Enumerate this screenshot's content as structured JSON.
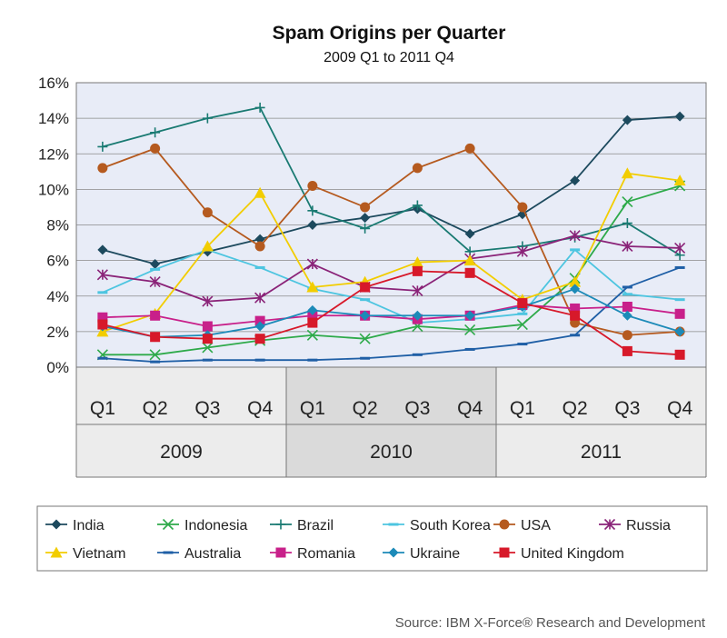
{
  "chart_data": {
    "type": "line",
    "title": "Spam Origins per Quarter",
    "subtitle": "2009 Q1 to 2011 Q4",
    "source": "Source: IBM X-Force® Research and Development",
    "quarters": [
      "Q1",
      "Q2",
      "Q3",
      "Q4",
      "Q1",
      "Q2",
      "Q3",
      "Q4",
      "Q1",
      "Q2",
      "Q3",
      "Q4"
    ],
    "years": [
      "2009",
      "2010",
      "2011"
    ],
    "y_ticks": [
      "0%",
      "2%",
      "4%",
      "6%",
      "8%",
      "10%",
      "12%",
      "14%",
      "16%"
    ],
    "ylim": [
      0,
      16
    ],
    "grid": true,
    "legend_position": "bottom",
    "series": [
      {
        "name": "India",
        "color": "#1d4a5e",
        "marker": "diamond",
        "values": [
          6.6,
          5.8,
          6.5,
          7.2,
          8.0,
          8.4,
          8.9,
          7.5,
          8.6,
          10.5,
          13.9,
          14.1
        ]
      },
      {
        "name": "Indonesia",
        "color": "#2eaa4a",
        "marker": "x",
        "values": [
          0.7,
          0.7,
          1.1,
          1.5,
          1.8,
          1.6,
          2.3,
          2.1,
          2.4,
          5.0,
          9.3,
          10.2
        ]
      },
      {
        "name": "Brazil",
        "color": "#197a72",
        "marker": "plus",
        "values": [
          12.4,
          13.2,
          14.0,
          14.6,
          8.8,
          7.8,
          9.1,
          6.5,
          6.8,
          7.3,
          8.1,
          6.3
        ]
      },
      {
        "name": "South Korea",
        "color": "#4dc5e0",
        "marker": "dash",
        "values": [
          4.2,
          5.5,
          6.6,
          5.6,
          4.4,
          3.8,
          2.5,
          2.7,
          3.0,
          6.6,
          4.1,
          3.8
        ]
      },
      {
        "name": "USA",
        "color": "#b55a1f",
        "marker": "circle",
        "values": [
          11.2,
          12.3,
          8.7,
          6.8,
          10.2,
          9.0,
          11.2,
          12.3,
          9.0,
          2.5,
          1.8,
          2.0
        ]
      },
      {
        "name": "Russia",
        "color": "#8a2378",
        "marker": "asterisk",
        "values": [
          5.2,
          4.8,
          3.7,
          3.9,
          5.8,
          4.5,
          4.3,
          6.1,
          6.5,
          7.4,
          6.8,
          6.7
        ]
      },
      {
        "name": "Vietnam",
        "color": "#f2cd00",
        "marker": "triangle",
        "values": [
          2.0,
          3.0,
          6.8,
          9.8,
          4.5,
          4.8,
          5.9,
          6.0,
          3.8,
          4.8,
          10.9,
          10.5
        ]
      },
      {
        "name": "Australia",
        "color": "#1f5fa6",
        "marker": "dash",
        "values": [
          0.5,
          0.3,
          0.4,
          0.4,
          0.4,
          0.5,
          0.7,
          1.0,
          1.3,
          1.8,
          4.5,
          5.6
        ]
      },
      {
        "name": "Romania",
        "color": "#c8208a",
        "marker": "square",
        "values": [
          2.8,
          2.9,
          2.3,
          2.6,
          2.9,
          2.9,
          2.7,
          2.9,
          3.5,
          3.3,
          3.4,
          3.0
        ]
      },
      {
        "name": "Ukraine",
        "color": "#1c8ab8",
        "marker": "diamond",
        "values": [
          2.3,
          1.7,
          1.8,
          2.3,
          3.2,
          2.9,
          2.9,
          2.9,
          3.4,
          4.4,
          2.9,
          2.0
        ]
      },
      {
        "name": "United Kingdom",
        "color": "#d7192a",
        "marker": "square",
        "values": [
          2.4,
          1.7,
          1.6,
          1.6,
          2.5,
          4.5,
          5.4,
          5.3,
          3.6,
          2.9,
          0.9,
          0.7
        ]
      }
    ]
  }
}
